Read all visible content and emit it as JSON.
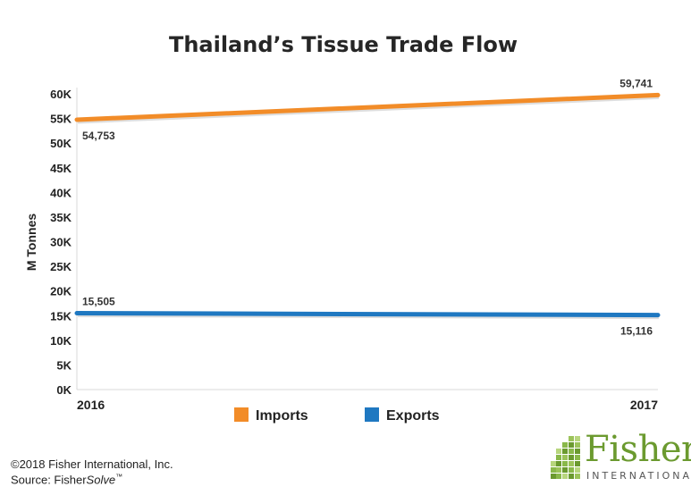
{
  "chart_data": {
    "type": "line",
    "title": "Thailand’s Tissue Trade Flow",
    "xlabel": "",
    "ylabel": "M Tonnes",
    "categories": [
      "2016",
      "2017"
    ],
    "ylim": [
      0,
      60000
    ],
    "yticks": [
      "0K",
      "5K",
      "10K",
      "15K",
      "20K",
      "25K",
      "30K",
      "35K",
      "40K",
      "45K",
      "50K",
      "55K",
      "60K"
    ],
    "series": [
      {
        "name": "Imports",
        "values": [
          54753,
          59741
        ],
        "labels": [
          "54,753",
          "59,741"
        ],
        "color": "#f28c28"
      },
      {
        "name": "Exports",
        "values": [
          15505,
          15116
        ],
        "labels": [
          "15,505",
          "15,116"
        ],
        "color": "#1f78c1"
      }
    ],
    "legend": "bottom",
    "grid": false
  },
  "footer": {
    "copyright": "©2018 Fisher International, Inc.",
    "source_prefix": "Source: Fisher",
    "source_italic": "Solve",
    "source_tm": "™"
  },
  "logo": {
    "word": "Fisher",
    "sub": "INTERNATIONAL",
    "color": "#6b9a2f"
  }
}
